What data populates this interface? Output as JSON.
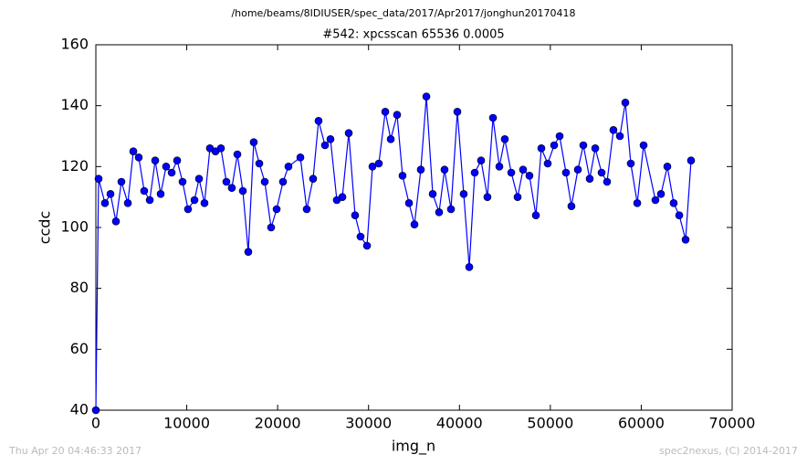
{
  "chart_data": {
    "type": "line",
    "suptitle": "/home/beams/8IDIUSER/spec_data/2017/Apr2017/jonghun20170418",
    "title": "#542: xpcsscan 65536 0.0005",
    "xlabel": "img_n",
    "ylabel": "ccdc",
    "footer_left": "Thu Apr 20 04:46:33 2017",
    "footer_right": "spec2nexus, (C) 2014-2017",
    "color": "#0000ff",
    "xlim": [
      0,
      70000
    ],
    "xticks": [
      0,
      10000,
      20000,
      30000,
      40000,
      50000,
      60000,
      70000
    ],
    "ylim": [
      40,
      160
    ],
    "yticks": [
      40,
      60,
      80,
      100,
      120,
      140,
      160
    ],
    "x": [
      0,
      300,
      1000,
      1610,
      2210,
      2810,
      3520,
      4120,
      4720,
      5320,
      5930,
      6530,
      7130,
      7730,
      8340,
      8940,
      9540,
      10140,
      10850,
      11350,
      11950,
      12550,
      13160,
      13760,
      14360,
      14960,
      15570,
      16170,
      16770,
      17370,
      17980,
      18580,
      19280,
      19890,
      20590,
      21190,
      22500,
      23200,
      23900,
      24500,
      25210,
      25810,
      26510,
      27120,
      27820,
      28520,
      29120,
      29830,
      30430,
      31130,
      31840,
      32440,
      33140,
      33740,
      34450,
      35050,
      35750,
      36360,
      37060,
      37760,
      38360,
      39070,
      39770,
      40470,
      41080,
      41680,
      42380,
      43080,
      43690,
      44390,
      44990,
      45700,
      46400,
      47000,
      47700,
      48410,
      49010,
      49710,
      50420,
      51020,
      51720,
      52320,
      53030,
      53630,
      54330,
      54940,
      55640,
      56240,
      56940,
      57650,
      58250,
      58850,
      59560,
      60260,
      61560,
      62170,
      62870,
      63570,
      64180,
      64880,
      65480
    ],
    "values": [
      40,
      116,
      108,
      111,
      102,
      115,
      108,
      125,
      123,
      112,
      109,
      122,
      111,
      120,
      118,
      122,
      115,
      106,
      109,
      116,
      108,
      126,
      125,
      126,
      115,
      113,
      124,
      112,
      92,
      128,
      121,
      115,
      100,
      106,
      115,
      120,
      123,
      106,
      116,
      135,
      127,
      129,
      109,
      110,
      131,
      104,
      97,
      94,
      120,
      121,
      138,
      129,
      137,
      117,
      108,
      101,
      119,
      143,
      111,
      105,
      119,
      106,
      138,
      111,
      87,
      118,
      122,
      110,
      136,
      120,
      129,
      118,
      110,
      119,
      117,
      104,
      126,
      121,
      127,
      130,
      118,
      107,
      119,
      127,
      116,
      126,
      118,
      115,
      132,
      130,
      141,
      121,
      108,
      127,
      109,
      111,
      120,
      108,
      104,
      96,
      122
    ]
  }
}
